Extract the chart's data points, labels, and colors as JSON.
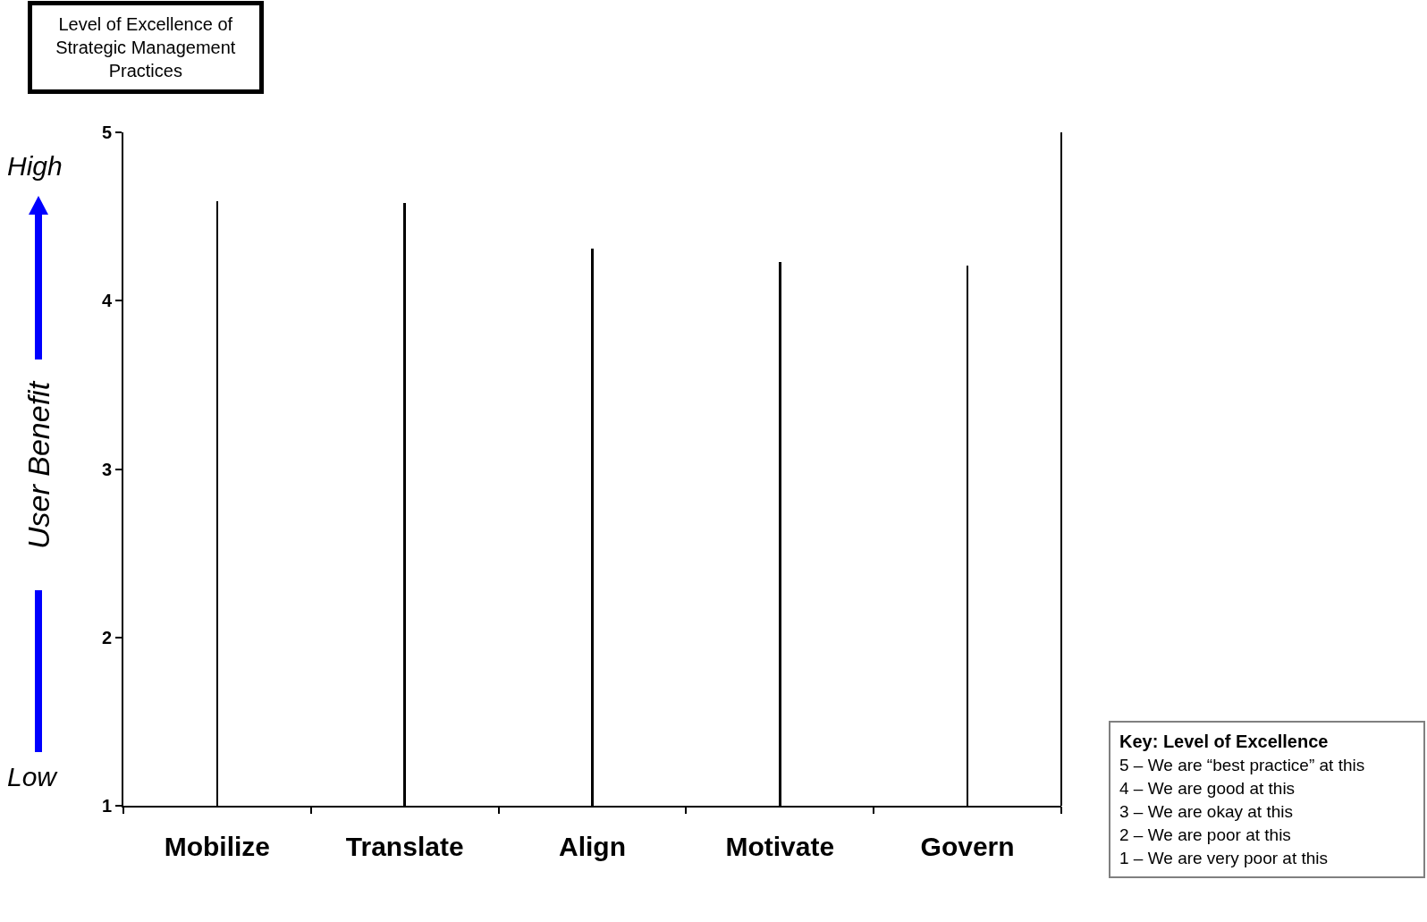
{
  "chart_data": {
    "type": "bar",
    "title": "Level of Excellence of Strategic Management Practices",
    "ylabel": "User Benefit",
    "categories": [
      "Mobilize",
      "Translate",
      "Align",
      "Motivate",
      "Govern"
    ],
    "values": [
      4.59,
      4.58,
      4.31,
      4.23,
      4.21
    ],
    "color": "#000000",
    "ylim": [
      1,
      5
    ],
    "yticks": [
      1,
      2,
      3,
      4,
      5
    ],
    "grid": false,
    "annotations": [
      "High",
      "Low",
      "Key: Level of Excellence",
      "5 – We are “best practice” at this",
      "4 – We are good at this",
      "3 – We are okay at this",
      "2 – We are poor at this",
      "1 – We are very poor at this"
    ]
  }
}
